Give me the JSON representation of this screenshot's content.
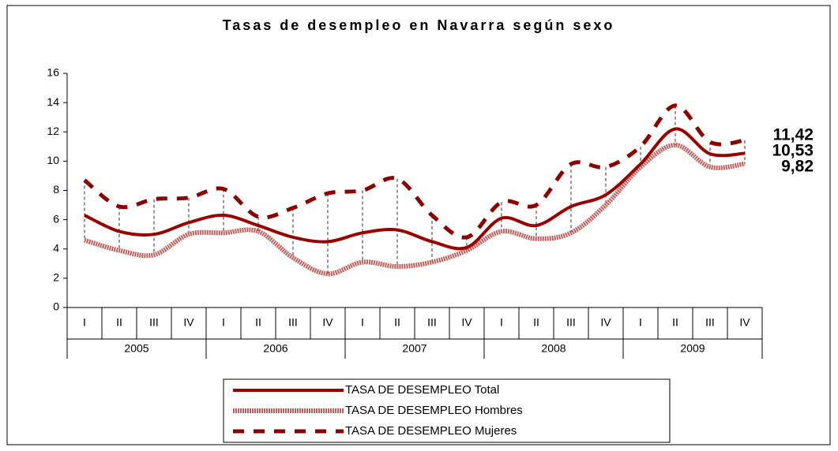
{
  "chart_data": {
    "type": "line",
    "title": "Tasas de desempleo en Navarra según sexo",
    "categories": [
      "I",
      "II",
      "III",
      "IV",
      "I",
      "II",
      "III",
      "IV",
      "I",
      "II",
      "III",
      "IV",
      "I",
      "II",
      "III",
      "IV",
      "I",
      "II",
      "III",
      "IV"
    ],
    "years": [
      "2005",
      "2006",
      "2007",
      "2008",
      "2009"
    ],
    "ylim": [
      0,
      16
    ],
    "yticks": [
      0,
      2,
      4,
      6,
      8,
      10,
      12,
      14,
      16
    ],
    "drop_lines": true,
    "series": [
      {
        "name": "TASA DE DESEMPLEO Total",
        "color": "#990000",
        "style": "solid",
        "values": [
          6.3,
          5.2,
          5.0,
          5.8,
          6.3,
          5.6,
          4.8,
          4.5,
          5.1,
          5.3,
          4.5,
          4.1,
          6.1,
          5.6,
          6.9,
          7.7,
          9.8,
          12.2,
          10.5,
          10.53
        ],
        "value_labels": [
          null,
          null,
          null,
          null,
          null,
          null,
          null,
          null,
          null,
          null,
          null,
          null,
          null,
          null,
          null,
          null,
          null,
          null,
          null,
          "10,53"
        ]
      },
      {
        "name": "TASA DE DESEMPLEO Hombres",
        "color": "#c0605c",
        "style": "thick",
        "values": [
          4.6,
          3.9,
          3.6,
          5.0,
          5.1,
          5.2,
          3.4,
          2.3,
          3.1,
          2.8,
          3.1,
          3.9,
          5.2,
          4.7,
          5.1,
          7.0,
          9.6,
          11.1,
          9.6,
          9.82
        ],
        "value_labels": [
          null,
          null,
          null,
          null,
          null,
          null,
          null,
          null,
          null,
          null,
          null,
          null,
          null,
          null,
          null,
          null,
          null,
          null,
          null,
          "9,82"
        ]
      },
      {
        "name": "TASA DE DESEMPLEO Mujeres",
        "color": "#8b0000",
        "style": "dashed",
        "values": [
          8.7,
          6.9,
          7.4,
          7.5,
          8.1,
          6.2,
          6.8,
          7.8,
          8.0,
          8.8,
          6.3,
          4.8,
          7.2,
          7.0,
          9.8,
          9.6,
          11.0,
          13.8,
          11.3,
          11.42
        ],
        "value_labels": [
          null,
          null,
          null,
          null,
          null,
          null,
          null,
          null,
          null,
          null,
          null,
          null,
          null,
          null,
          null,
          null,
          null,
          null,
          null,
          "11,42"
        ]
      }
    ]
  }
}
